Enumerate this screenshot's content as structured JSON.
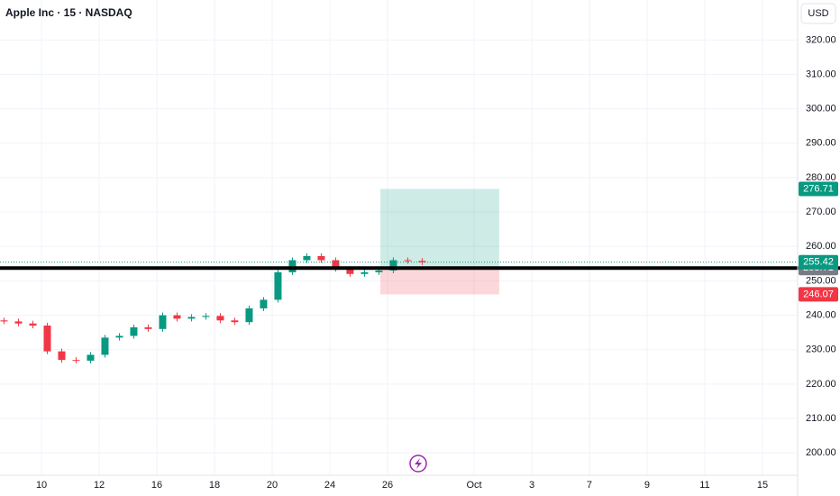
{
  "chart_data": {
    "type": "candlestick",
    "title": "Apple Inc · 15 · NASDAQ",
    "currency": "USD",
    "up_color": "#089981",
    "down_color": "#f23645",
    "x": [
      -1.3,
      -0.8,
      -0.3,
      0.2,
      0.7,
      1.2,
      1.7,
      2.2,
      2.7,
      3.2,
      3.7,
      4.2,
      4.7,
      5.2,
      5.7,
      6.2,
      6.7,
      7.2,
      7.7,
      8.2,
      8.7,
      9.2,
      9.7,
      10.2,
      10.7,
      11.2,
      11.7,
      12.2,
      12.7,
      13.2
    ],
    "open": [
      238.5,
      238.2,
      237.6,
      237.0,
      229.5,
      227.0,
      226.8,
      228.5,
      233.5,
      234.0,
      236.5,
      236.0,
      240.0,
      239.0,
      239.5,
      239.8,
      238.5,
      238.0,
      242.0,
      244.5,
      252.5,
      256.0,
      257.2,
      256.0,
      253.5,
      252.0,
      252.5,
      253.0,
      256.0,
      255.8
    ],
    "high": [
      239.3,
      239.0,
      238.4,
      237.8,
      230.3,
      227.8,
      229.3,
      234.3,
      234.8,
      237.3,
      237.3,
      240.8,
      240.8,
      240.3,
      240.6,
      240.6,
      239.3,
      242.8,
      245.3,
      253.3,
      256.8,
      258.0,
      258.0,
      256.8,
      254.3,
      253.3,
      253.8,
      256.8,
      256.8,
      256.6
    ],
    "low": [
      237.4,
      236.8,
      236.2,
      228.7,
      226.2,
      226.0,
      226.0,
      227.7,
      232.7,
      233.2,
      235.2,
      235.2,
      238.2,
      238.2,
      238.7,
      237.7,
      237.2,
      237.2,
      241.2,
      243.7,
      251.7,
      255.2,
      255.2,
      252.7,
      251.2,
      251.2,
      251.7,
      252.2,
      255.0,
      254.6
    ],
    "close": [
      238.2,
      237.6,
      237.0,
      229.5,
      227.0,
      226.8,
      228.5,
      233.5,
      234.0,
      236.5,
      236.0,
      240.0,
      239.0,
      239.5,
      239.8,
      238.5,
      238.0,
      242.0,
      244.5,
      252.5,
      256.0,
      257.2,
      256.0,
      253.5,
      252.0,
      252.5,
      253.0,
      256.0,
      255.8,
      255.4
    ],
    "last_price": 255.42,
    "position": {
      "x_start": 11.75,
      "x_end": 15.87,
      "entry": 253.71,
      "target": 276.71,
      "stop": 246.07
    },
    "xlim": [
      -1.44,
      26.22
    ],
    "xticks": [
      {
        "value": 0,
        "label": "10"
      },
      {
        "value": 2,
        "label": "12"
      },
      {
        "value": 4,
        "label": "16"
      },
      {
        "value": 6,
        "label": "18"
      },
      {
        "value": 8,
        "label": "20"
      },
      {
        "value": 10,
        "label": "24"
      },
      {
        "value": 12,
        "label": "26"
      },
      {
        "value": 15,
        "label": "Oct"
      },
      {
        "value": 17,
        "label": "3"
      },
      {
        "value": 19,
        "label": "7"
      },
      {
        "value": 21,
        "label": "9"
      },
      {
        "value": 23,
        "label": "11"
      },
      {
        "value": 25,
        "label": "15"
      }
    ],
    "ylim": [
      193.49,
      331.63
    ],
    "yticks": [
      {
        "value": 200,
        "label": "200.00"
      },
      {
        "value": 210,
        "label": "210.00"
      },
      {
        "value": 220,
        "label": "220.00"
      },
      {
        "value": 230,
        "label": "230.00"
      },
      {
        "value": 240,
        "label": "240.00"
      },
      {
        "value": 250,
        "label": "250.00"
      },
      {
        "value": 260,
        "label": "260.00"
      },
      {
        "value": 270,
        "label": "270.00"
      },
      {
        "value": 280,
        "label": "280.00"
      },
      {
        "value": 290,
        "label": "290.00"
      },
      {
        "value": 300,
        "label": "300.00"
      },
      {
        "value": 310,
        "label": "310.00"
      },
      {
        "value": 320,
        "label": "320.00"
      }
    ],
    "grid": true
  }
}
